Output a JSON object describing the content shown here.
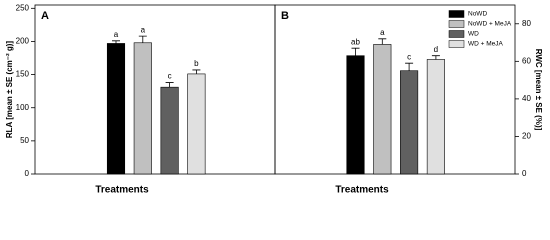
{
  "chart_data": [
    {
      "type": "bar",
      "panel": "A",
      "ylabel": "RLA [mean ± SE (cm⁻² g)]",
      "xlabel": "Treatments",
      "ylim": [
        0,
        255
      ],
      "yticks": [
        0,
        50,
        100,
        150,
        200,
        250
      ],
      "series": [
        {
          "color": "#000000",
          "values": [
            197
          ],
          "errors": [
            4
          ],
          "letters": [
            "a"
          ]
        },
        {
          "color": "#c0c0c0",
          "values": [
            198
          ],
          "errors": [
            10
          ],
          "letters": [
            "a"
          ]
        },
        {
          "color": "#606060",
          "values": [
            131
          ],
          "errors": [
            7
          ],
          "letters": [
            "c"
          ]
        },
        {
          "color": "#e0e0e0",
          "values": [
            151
          ],
          "errors": [
            6
          ],
          "letters": [
            "b"
          ]
        }
      ]
    },
    {
      "type": "bar",
      "panel": "B",
      "y2label": "RWC [mean ± SE (%)]",
      "xlabel": "Treatments",
      "y2lim": [
        0,
        90
      ],
      "y2ticks": [
        0,
        20,
        40,
        60,
        80
      ],
      "legend": "upper right",
      "series": [
        {
          "name": "NoWD",
          "color": "#000000",
          "values": [
            63
          ],
          "errors": [
            4
          ],
          "letters": [
            "ab"
          ],
          "axis": "y2"
        },
        {
          "name": "NoWD + MeJA",
          "color": "#c0c0c0",
          "values": [
            69
          ],
          "errors": [
            3
          ],
          "letters": [
            "a"
          ],
          "axis": "y2"
        },
        {
          "name": "WD",
          "color": "#606060",
          "values": [
            55
          ],
          "errors": [
            4
          ],
          "letters": [
            "c"
          ],
          "axis": "y2"
        },
        {
          "name": "WD + MeJA",
          "color": "#e0e0e0",
          "values": [
            61
          ],
          "errors": [
            2
          ],
          "letters": [
            "d"
          ],
          "axis": "y2"
        }
      ]
    }
  ]
}
